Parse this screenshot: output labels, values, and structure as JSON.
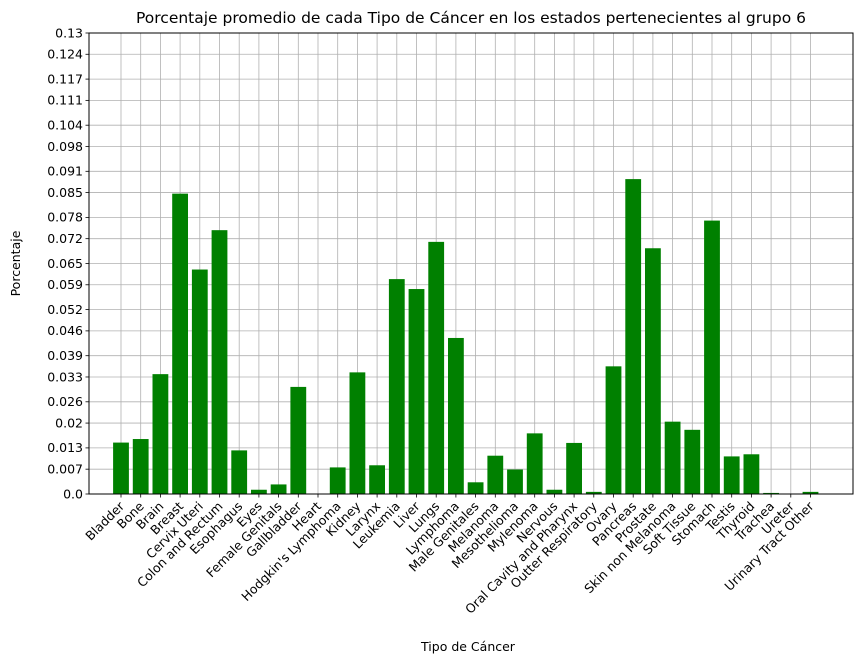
{
  "chart_data": {
    "type": "bar",
    "title": "Porcentaje promedio de cada Tipo de Cáncer en los estados pertenecientes al grupo 6",
    "xlabel": "Tipo de Cáncer",
    "ylabel": "Porcentaje",
    "ylim": [
      0,
      0.13
    ],
    "yticks": [
      "0.0",
      "0.007",
      "0.013",
      "0.02",
      "0.026",
      "0.033",
      "0.039",
      "0.046",
      "0.052",
      "0.059",
      "0.065",
      "0.072",
      "0.078",
      "0.085",
      "0.091",
      "0.098",
      "0.104",
      "0.111",
      "0.117",
      "0.124",
      "0.13"
    ],
    "grid": true,
    "bar_color": "#008000",
    "categories": [
      "Bladder",
      "Bone",
      "Brain",
      "Breast",
      "Cervix Uteri",
      "Colon and Rectum",
      "Esophagus",
      "Eyes",
      "Female Genitals",
      "Gallbladder",
      "Heart",
      "Hodgkin's Lymphoma",
      "Kidney",
      "Larynx",
      "Leukemia",
      "Liver",
      "Lungs",
      "Lymphoma",
      "Male Genitales",
      "Melanoma",
      "Mesothelioma",
      "Mylenoma",
      "Nervous",
      "Oral Cavity and Pharynx",
      "Outter Respiratory",
      "Ovary",
      "Pancreas",
      "Prostate",
      "Skin non Melanoma",
      "Soft Tissue",
      "Stomach",
      "Testis",
      "Thyroid",
      "Trachea",
      "Ureter",
      "Urinary Tract Other"
    ],
    "values": [
      0.0145,
      0.0155,
      0.0338,
      0.0847,
      0.0633,
      0.0744,
      0.0123,
      0.0012,
      0.0027,
      0.0302,
      0.0,
      0.0075,
      0.0343,
      0.0081,
      0.0606,
      0.0578,
      0.0711,
      0.044,
      0.0033,
      0.0108,
      0.0069,
      0.0171,
      0.0012,
      0.0144,
      0.0006,
      0.036,
      0.0888,
      0.0693,
      0.0204,
      0.0181,
      0.0771,
      0.0106,
      0.0112,
      0.0003,
      0.0,
      0.0006
    ]
  }
}
